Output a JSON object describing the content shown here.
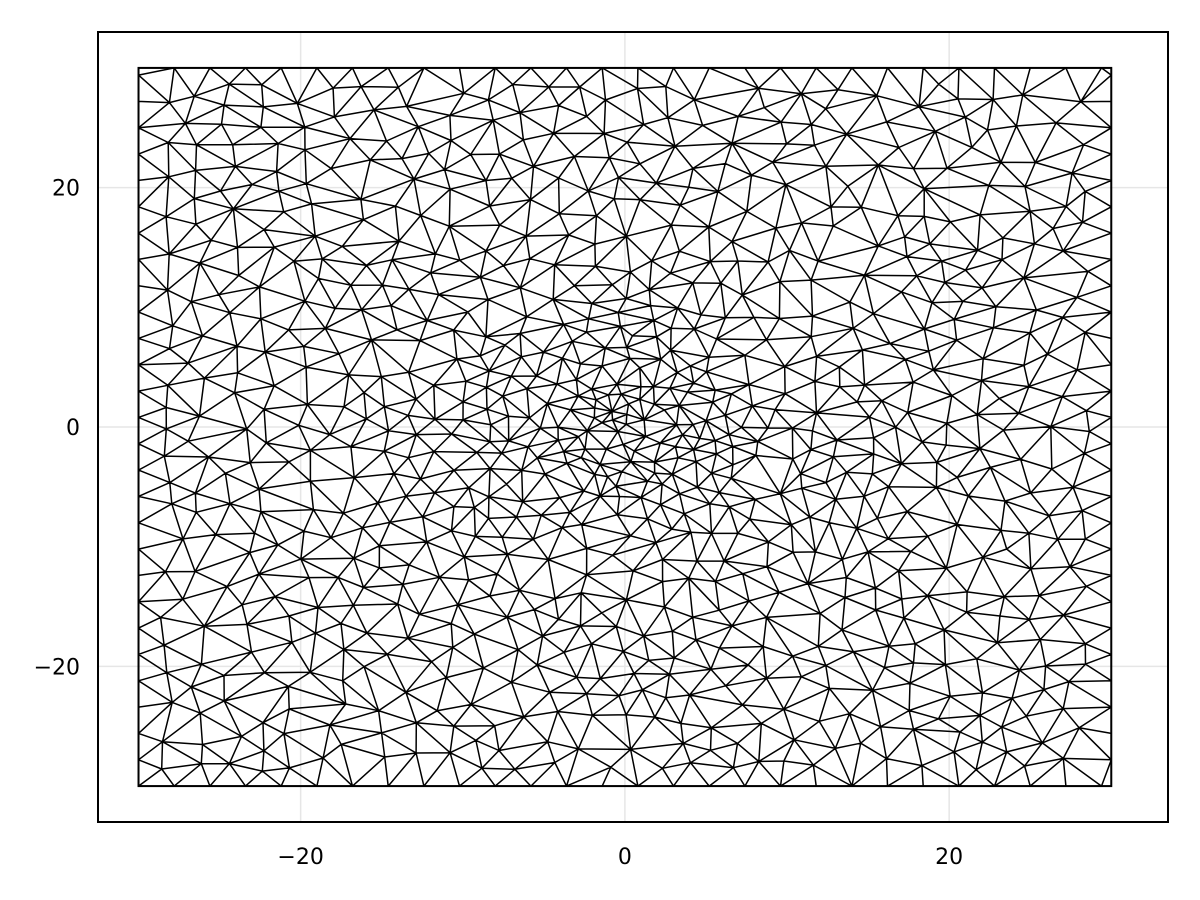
{
  "chart_data": {
    "type": "mesh",
    "title": "",
    "xlabel": "",
    "ylabel": "",
    "xlim": [
      -32.5,
      33.5
    ],
    "ylim": [
      -33,
      33
    ],
    "grid": true,
    "domain": {
      "xmin": -30,
      "xmax": 30,
      "ymin": -30,
      "ymax": 30
    },
    "x_ticks": [
      {
        "value": -20,
        "label": "−20"
      },
      {
        "value": 0,
        "label": "0"
      },
      {
        "value": 20,
        "label": "20"
      }
    ],
    "y_ticks": [
      {
        "value": 20,
        "label": "20"
      },
      {
        "value": 0,
        "label": "0"
      },
      {
        "value": -20,
        "label": "−20"
      }
    ],
    "mesh_color": "#000000",
    "refinement_regions": [
      {
        "center": [
          0,
          0
        ],
        "radius": 6.5,
        "density": 0.85
      },
      {
        "center": [
          -6,
          -3
        ],
        "radius": 4.5,
        "density": 0.6
      },
      {
        "center": [
          0,
          7
        ],
        "radius": 4,
        "density": 0.6
      },
      {
        "center": [
          11,
          -4
        ],
        "radius": 6.5,
        "density": 0.45
      },
      {
        "center": [
          -11,
          0
        ],
        "radius": 5,
        "density": 0.35
      },
      {
        "center": [
          1,
          -18
        ],
        "radius": 5,
        "density": 0.35
      },
      {
        "center": [
          13,
          -25
        ],
        "radius": 5,
        "density": 0.25
      },
      {
        "center": [
          8,
          -5
        ],
        "radius": 3.5,
        "density": 0.5
      }
    ],
    "base_spacing": 1.8
  }
}
